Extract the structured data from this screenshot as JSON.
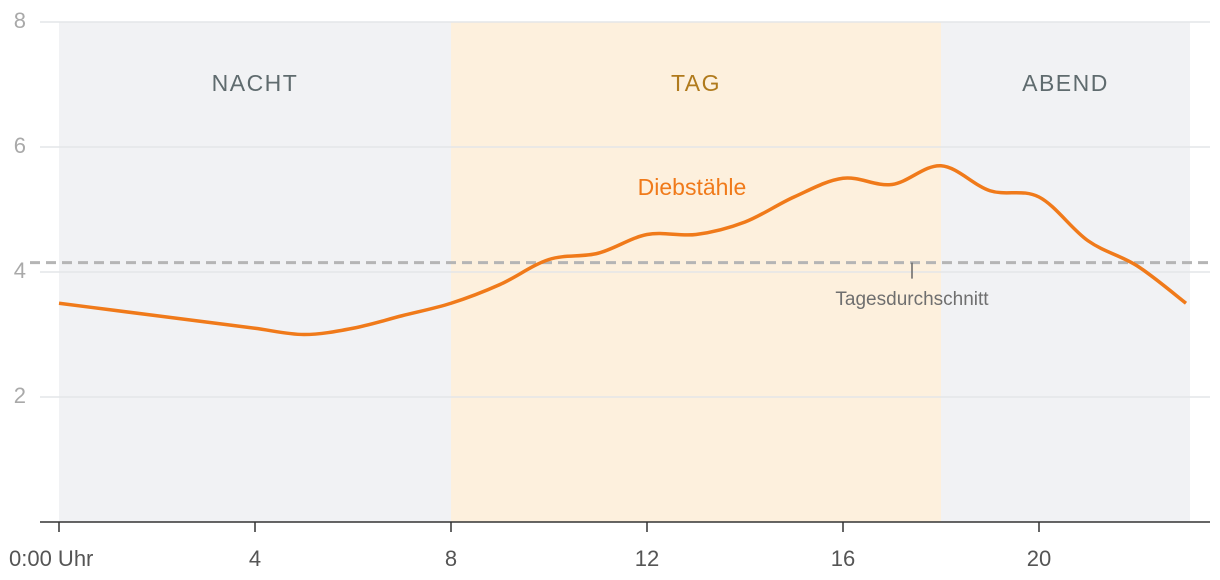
{
  "chart_data": {
    "type": "line",
    "x": [
      0,
      1,
      2,
      3,
      4,
      5,
      6,
      7,
      8,
      9,
      10,
      11,
      12,
      13,
      14,
      15,
      16,
      17,
      18,
      19,
      20,
      21,
      22,
      23
    ],
    "series": [
      {
        "name": "Diebstähle",
        "color": "#f07a1a",
        "values": [
          3.5,
          3.4,
          3.3,
          3.2,
          3.1,
          3.0,
          3.1,
          3.3,
          3.5,
          3.8,
          4.2,
          4.3,
          4.6,
          4.6,
          4.8,
          5.2,
          5.5,
          5.4,
          5.7,
          5.3,
          5.2,
          4.5,
          4.1,
          3.5
        ]
      }
    ],
    "xlim": [
      0,
      23
    ],
    "xticks": [
      {
        "value": 0,
        "label": "0:00 Uhr"
      },
      4,
      8,
      12,
      16,
      20
    ],
    "ylim": [
      0,
      8
    ],
    "yticks": [
      2,
      4,
      6,
      8
    ],
    "grid": true,
    "bands": [
      {
        "label": "NACHT",
        "start": 0,
        "end": 8,
        "color": "#f1f2f4",
        "label_color": "#5f6b6e"
      },
      {
        "label": "TAG",
        "start": 8,
        "end": 18,
        "color": "#fdf0dd",
        "label_color": "#b07a1c"
      },
      {
        "label": "ABEND",
        "start": 18,
        "end": 23,
        "color": "#f1f2f4",
        "label_color": "#5f6b6e"
      }
    ],
    "reference_line": {
      "value": 4.15,
      "label": "Tagesdurchschnitt",
      "color": "#b5b5b5"
    }
  }
}
